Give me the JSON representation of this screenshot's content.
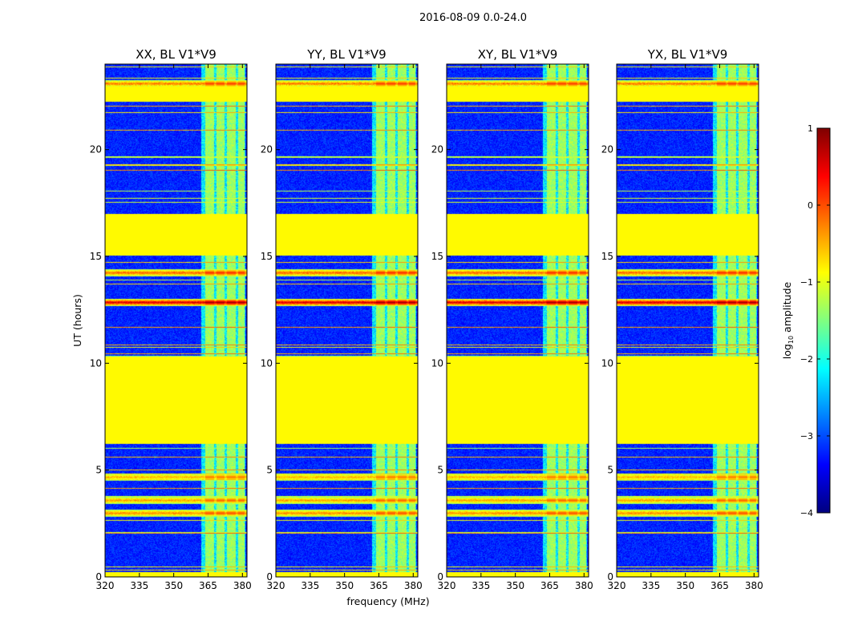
{
  "chart_data": {
    "type": "heatmap",
    "suptitle": "2016-08-09 0.0-24.0",
    "xlabel": "frequency (MHz)",
    "ylabel": "UT (hours)",
    "xlim": [
      320,
      382
    ],
    "ylim": [
      0,
      24
    ],
    "xticks": [
      320,
      335,
      350,
      365,
      380
    ],
    "yticks": [
      0,
      5,
      10,
      15,
      20
    ],
    "colorbar": {
      "label": "log",
      "label_sub": "10",
      "label_rest": " amplitude",
      "range": [
        -4,
        1
      ],
      "ticks": [
        1,
        0,
        -1,
        -2,
        -3,
        -4
      ],
      "tick_labels": [
        "1",
        "0",
        "−1",
        "−2",
        "−3",
        "−4"
      ],
      "colormap": "jet",
      "colors": [
        "#00007f",
        "#0000ff",
        "#0080ff",
        "#00ffff",
        "#80ff80",
        "#ffff00",
        "#ff8000",
        "#ff0000",
        "#7f0000"
      ]
    },
    "panels": [
      {
        "title": "XX, BL V1*V9",
        "pol": "XX"
      },
      {
        "title": "YY, BL V1*V9",
        "pol": "YY"
      },
      {
        "title": "XY, BL V1*V9",
        "pol": "XY"
      },
      {
        "title": "YX, BL V1*V9",
        "pol": "YX"
      }
    ],
    "flagged_time_ranges_hours": [
      [
        6.25,
        10.35
      ],
      [
        15.05,
        17.0
      ],
      [
        22.25,
        22.95
      ],
      [
        0.0,
        0.25
      ]
    ],
    "flagged_value": -0.85,
    "background_value": -3.2,
    "rfi_channels_MHz": [
      [
        363.5,
        367.5
      ],
      [
        368.5,
        372.0
      ],
      [
        373.0,
        377.0
      ],
      [
        378.0,
        380.8
      ]
    ],
    "strong_rfi_hours": [
      {
        "t": 12.85,
        "v": 0.6
      },
      {
        "t": 14.25,
        "v": -0.1
      },
      {
        "t": 3.0,
        "v": -0.3
      },
      {
        "t": 23.1,
        "v": -0.2
      },
      {
        "t": 4.7,
        "v": -0.5
      },
      {
        "t": 3.6,
        "v": -0.4
      }
    ]
  }
}
